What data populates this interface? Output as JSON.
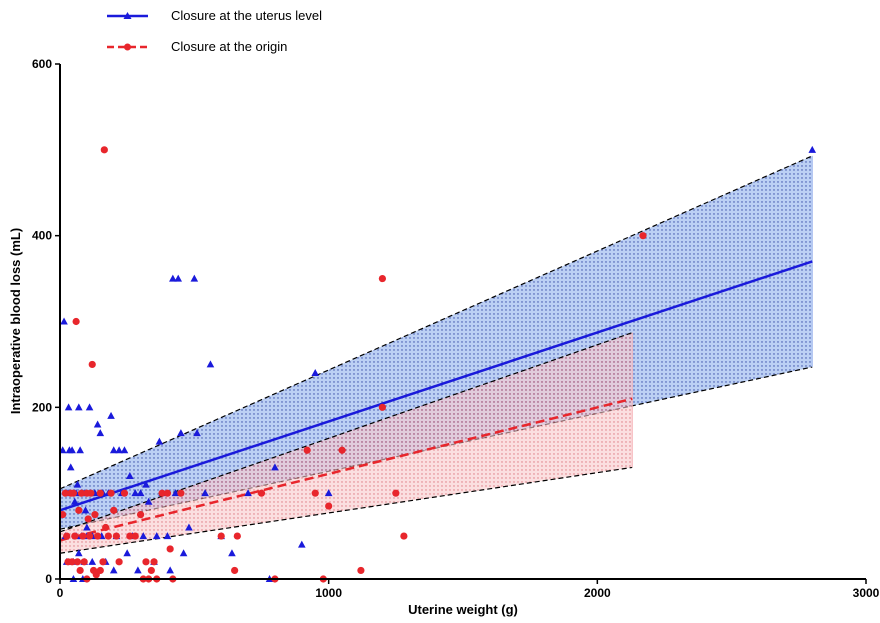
{
  "chart_data": {
    "type": "scatter",
    "xlabel": "Uterine weight (g)",
    "ylabel": "Intraoperative blood loss (mL)",
    "xlim": [
      0,
      3000
    ],
    "ylim": [
      0,
      600
    ],
    "x_ticks": [
      "0",
      "1000",
      "2000",
      "3000"
    ],
    "y_ticks": [
      "0",
      "200",
      "400",
      "600"
    ],
    "grid": false,
    "legend_position": "top-left",
    "series": [
      {
        "name": "Closure at the uterus level",
        "color": "#1a1adb",
        "marker": "triangle",
        "line_style": "solid",
        "fit": {
          "x": [
            0,
            2800
          ],
          "y": [
            80,
            370
          ]
        },
        "ci_band": {
          "x": [
            0,
            2800
          ],
          "upper": [
            105,
            493
          ],
          "lower": [
            58,
            247
          ]
        },
        "band_fill": "#9fb8ee",
        "points": [
          [
            10,
            150
          ],
          [
            15,
            300
          ],
          [
            20,
            50
          ],
          [
            25,
            20
          ],
          [
            30,
            100
          ],
          [
            32,
            200
          ],
          [
            35,
            150
          ],
          [
            40,
            130
          ],
          [
            45,
            150
          ],
          [
            50,
            0
          ],
          [
            50,
            20
          ],
          [
            55,
            90
          ],
          [
            60,
            50
          ],
          [
            60,
            100
          ],
          [
            65,
            110
          ],
          [
            70,
            200
          ],
          [
            70,
            30
          ],
          [
            75,
            150
          ],
          [
            80,
            100
          ],
          [
            80,
            50
          ],
          [
            85,
            0
          ],
          [
            90,
            20
          ],
          [
            90,
            100
          ],
          [
            95,
            80
          ],
          [
            100,
            50
          ],
          [
            100,
            60
          ],
          [
            110,
            200
          ],
          [
            115,
            100
          ],
          [
            120,
            50
          ],
          [
            120,
            20
          ],
          [
            130,
            100
          ],
          [
            140,
            180
          ],
          [
            150,
            170
          ],
          [
            155,
            50
          ],
          [
            160,
            100
          ],
          [
            170,
            20
          ],
          [
            180,
            100
          ],
          [
            190,
            190
          ],
          [
            200,
            150
          ],
          [
            200,
            10
          ],
          [
            210,
            50
          ],
          [
            220,
            150
          ],
          [
            230,
            100
          ],
          [
            240,
            150
          ],
          [
            250,
            30
          ],
          [
            260,
            120
          ],
          [
            270,
            50
          ],
          [
            280,
            100
          ],
          [
            290,
            10
          ],
          [
            300,
            100
          ],
          [
            310,
            50
          ],
          [
            320,
            110
          ],
          [
            330,
            90
          ],
          [
            350,
            20
          ],
          [
            360,
            50
          ],
          [
            370,
            160
          ],
          [
            380,
            100
          ],
          [
            400,
            50
          ],
          [
            410,
            10
          ],
          [
            420,
            350
          ],
          [
            430,
            100
          ],
          [
            440,
            350
          ],
          [
            450,
            170
          ],
          [
            460,
            30
          ],
          [
            480,
            60
          ],
          [
            500,
            350
          ],
          [
            510,
            170
          ],
          [
            540,
            100
          ],
          [
            560,
            250
          ],
          [
            600,
            50
          ],
          [
            640,
            30
          ],
          [
            700,
            100
          ],
          [
            780,
            0
          ],
          [
            800,
            130
          ],
          [
            900,
            40
          ],
          [
            950,
            240
          ],
          [
            1000,
            100
          ],
          [
            2800,
            500
          ]
        ]
      },
      {
        "name": "Closure at the origin",
        "color": "#e8262c",
        "marker": "circle",
        "line_style": "dashed",
        "fit": {
          "x": [
            0,
            2130
          ],
          "y": [
            45,
            210
          ]
        },
        "ci_band": {
          "x": [
            0,
            2130
          ],
          "upper": [
            55,
            287
          ],
          "lower": [
            30,
            130
          ]
        },
        "band_fill": "#f5b2b6",
        "points": [
          [
            10,
            75
          ],
          [
            20,
            100
          ],
          [
            25,
            50
          ],
          [
            30,
            20
          ],
          [
            40,
            100
          ],
          [
            45,
            20
          ],
          [
            50,
            100
          ],
          [
            55,
            50
          ],
          [
            60,
            300
          ],
          [
            65,
            20
          ],
          [
            70,
            80
          ],
          [
            75,
            10
          ],
          [
            80,
            100
          ],
          [
            85,
            50
          ],
          [
            90,
            20
          ],
          [
            100,
            100
          ],
          [
            100,
            0
          ],
          [
            105,
            70
          ],
          [
            110,
            50
          ],
          [
            115,
            100
          ],
          [
            120,
            250
          ],
          [
            125,
            10
          ],
          [
            130,
            75
          ],
          [
            135,
            5
          ],
          [
            140,
            50
          ],
          [
            150,
            100
          ],
          [
            150,
            10
          ],
          [
            160,
            20
          ],
          [
            165,
            500
          ],
          [
            170,
            60
          ],
          [
            180,
            50
          ],
          [
            190,
            100
          ],
          [
            200,
            80
          ],
          [
            210,
            50
          ],
          [
            220,
            20
          ],
          [
            240,
            100
          ],
          [
            260,
            50
          ],
          [
            280,
            50
          ],
          [
            300,
            75
          ],
          [
            310,
            0
          ],
          [
            320,
            20
          ],
          [
            330,
            0
          ],
          [
            340,
            10
          ],
          [
            350,
            20
          ],
          [
            360,
            0
          ],
          [
            380,
            100
          ],
          [
            400,
            100
          ],
          [
            410,
            35
          ],
          [
            420,
            0
          ],
          [
            450,
            100
          ],
          [
            600,
            50
          ],
          [
            650,
            10
          ],
          [
            660,
            50
          ],
          [
            750,
            100
          ],
          [
            800,
            0
          ],
          [
            920,
            150
          ],
          [
            950,
            100
          ],
          [
            980,
            0
          ],
          [
            1000,
            85
          ],
          [
            1050,
            150
          ],
          [
            1120,
            10
          ],
          [
            1200,
            350
          ],
          [
            1200,
            200
          ],
          [
            1250,
            100
          ],
          [
            1280,
            50
          ],
          [
            2170,
            400
          ]
        ]
      }
    ]
  }
}
